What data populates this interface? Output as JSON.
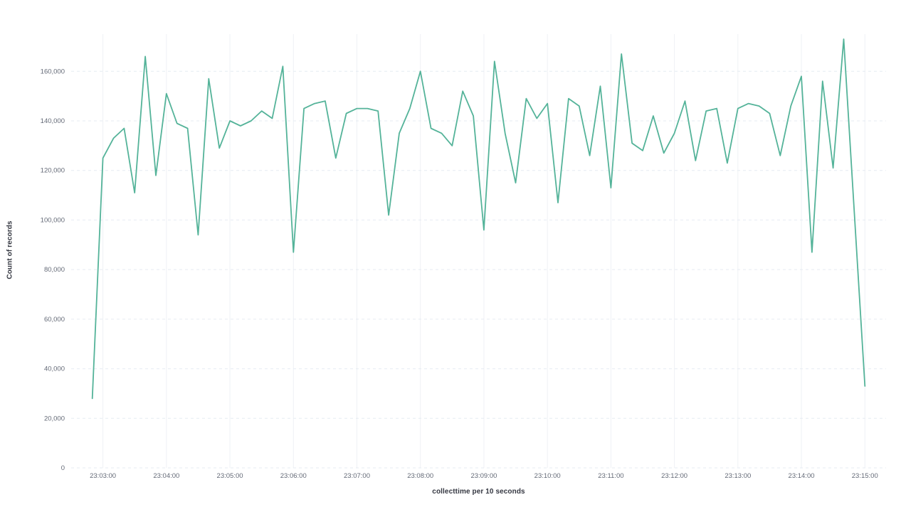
{
  "chart_data": {
    "type": "line",
    "title": "",
    "xlabel": "collecttime per 10 seconds",
    "ylabel": "Count of records",
    "legend": "off",
    "grid": "on",
    "line_color": "#54b399",
    "grid_h_color": "#e6ebf2",
    "grid_v_color": "#eef1f5",
    "tick_label_color": "#646a77",
    "axis_title_color": "#343741",
    "background_color": "#ffffff",
    "ylim": [
      0,
      175000
    ],
    "x_domain": [
      "23:02:30",
      "23:15:20"
    ],
    "y_ticks": [
      0,
      20000,
      40000,
      60000,
      80000,
      100000,
      120000,
      140000,
      160000
    ],
    "x_ticks": [
      "23:03:00",
      "23:04:00",
      "23:05:00",
      "23:06:00",
      "23:07:00",
      "23:08:00",
      "23:09:00",
      "23:10:00",
      "23:11:00",
      "23:12:00",
      "23:13:00",
      "23:14:00",
      "23:15:00"
    ],
    "x": [
      "23:02:50",
      "23:03:00",
      "23:03:10",
      "23:03:20",
      "23:03:30",
      "23:03:40",
      "23:03:50",
      "23:04:00",
      "23:04:10",
      "23:04:20",
      "23:04:30",
      "23:04:40",
      "23:04:50",
      "23:05:00",
      "23:05:10",
      "23:05:20",
      "23:05:30",
      "23:05:40",
      "23:05:50",
      "23:06:00",
      "23:06:10",
      "23:06:20",
      "23:06:30",
      "23:06:40",
      "23:06:50",
      "23:07:00",
      "23:07:10",
      "23:07:20",
      "23:07:30",
      "23:07:40",
      "23:07:50",
      "23:08:00",
      "23:08:10",
      "23:08:20",
      "23:08:30",
      "23:08:40",
      "23:08:50",
      "23:09:00",
      "23:09:10",
      "23:09:20",
      "23:09:30",
      "23:09:40",
      "23:09:50",
      "23:10:00",
      "23:10:10",
      "23:10:20",
      "23:10:30",
      "23:10:40",
      "23:10:50",
      "23:11:00",
      "23:11:10",
      "23:11:20",
      "23:11:30",
      "23:11:40",
      "23:11:50",
      "23:12:00",
      "23:12:10",
      "23:12:20",
      "23:12:30",
      "23:12:40",
      "23:12:50",
      "23:13:00",
      "23:13:10",
      "23:13:20",
      "23:13:30",
      "23:13:40",
      "23:13:50",
      "23:14:00",
      "23:14:10",
      "23:14:20",
      "23:14:30",
      "23:14:40",
      "23:14:50",
      "23:15:00"
    ],
    "values": [
      28000,
      125000,
      133000,
      137000,
      111000,
      166000,
      118000,
      151000,
      139000,
      137000,
      94000,
      157000,
      129000,
      140000,
      138000,
      140000,
      144000,
      141000,
      162000,
      87000,
      145000,
      147000,
      148000,
      125000,
      143000,
      145000,
      145000,
      144000,
      102000,
      135000,
      145000,
      160000,
      137000,
      135000,
      130000,
      152000,
      142000,
      96000,
      164000,
      135000,
      115000,
      149000,
      141000,
      147000,
      107000,
      149000,
      146000,
      126000,
      154000,
      113000,
      167000,
      131000,
      128000,
      142000,
      127000,
      135000,
      148000,
      124000,
      144000,
      145000,
      123000,
      145000,
      147000,
      146000,
      143000,
      126000,
      146000,
      158000,
      87000,
      156000,
      121000,
      173000,
      103000,
      33000
    ]
  }
}
